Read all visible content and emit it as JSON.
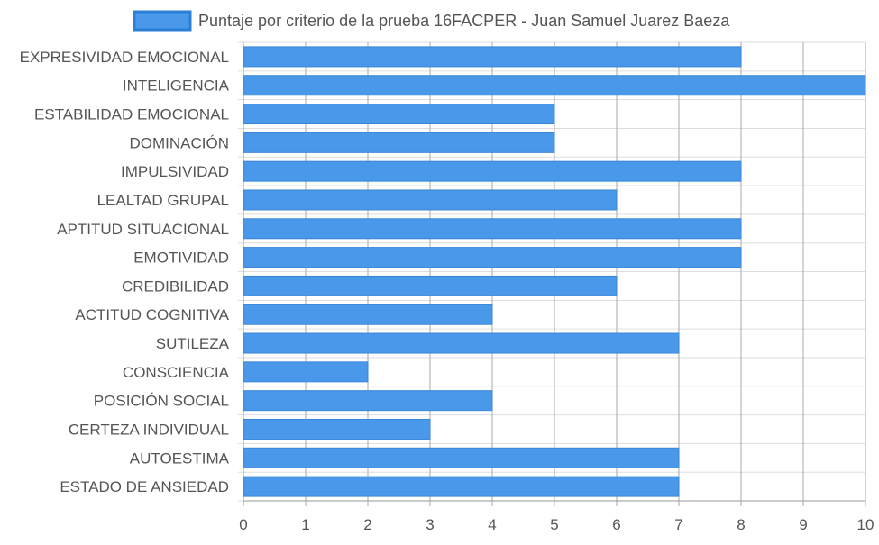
{
  "chart_data": {
    "type": "bar",
    "orientation": "horizontal",
    "legend": {
      "label": "Puntaje por criterio de la prueba 16FACPER - Juan Samuel Juarez Baeza",
      "placement": "top-center"
    },
    "categories": [
      "EXPRESIVIDAD EMOCIONAL",
      "INTELIGENCIA",
      "ESTABILIDAD EMOCIONAL",
      "DOMINACIÓN",
      "IMPULSIVIDAD",
      "LEALTAD GRUPAL",
      "APTITUD SITUACIONAL",
      "EMOTIVIDAD",
      "CREDIBILIDAD",
      "ACTITUD COGNITIVA",
      "SUTILEZA",
      "CONSCIENCIA",
      "POSICIÓN SOCIAL",
      "CERTEZA INDIVIDUAL",
      "AUTOESTIMA",
      "ESTADO DE ANSIEDAD"
    ],
    "series": [
      {
        "name": "Puntaje por criterio de la prueba 16FACPER - Juan Samuel Juarez Baeza",
        "values": [
          8,
          10,
          5,
          5,
          8,
          6,
          8,
          8,
          6,
          4,
          7,
          2,
          4,
          3,
          7,
          7
        ]
      }
    ],
    "xlim": [
      0,
      10
    ],
    "x_ticks": [
      "0",
      "1",
      "2",
      "3",
      "4",
      "5",
      "6",
      "7",
      "8",
      "9",
      "10"
    ],
    "grid": true,
    "colors": {
      "bar_fill": "#4a98ea",
      "bar_stroke": "#3a86d8",
      "legend_fill": "#4a98ea",
      "legend_stroke": "#2b7fd6",
      "grid": "#dddddd",
      "text": "#555555"
    }
  }
}
